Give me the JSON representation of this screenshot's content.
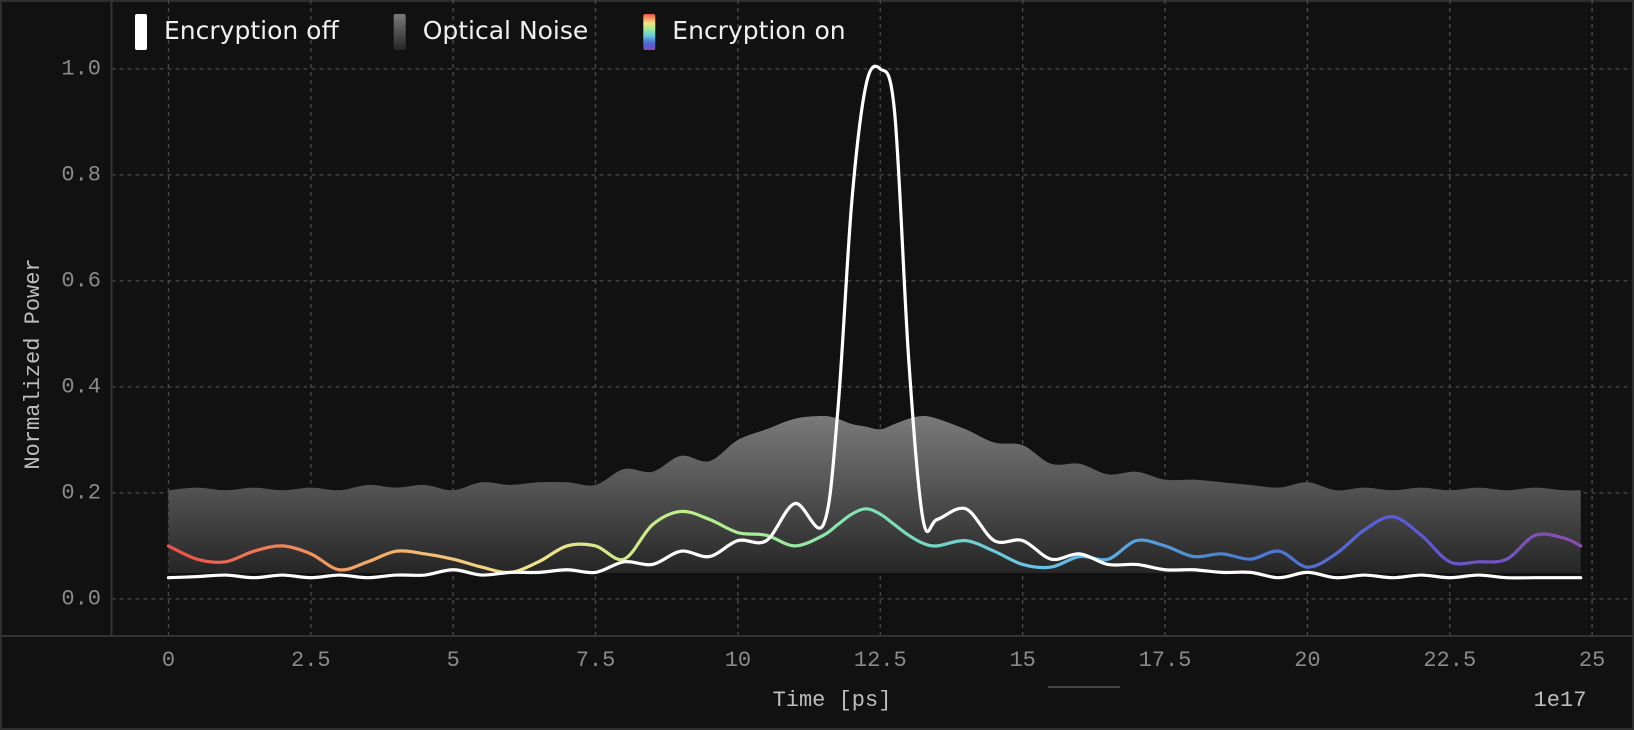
{
  "chart_data": {
    "type": "line",
    "x_label": "Time [ps]",
    "y_label": "Normalized Power",
    "x_offset_label": "1e17",
    "x": [
      0,
      0.5,
      1,
      1.5,
      2,
      2.5,
      3,
      3.5,
      4,
      4.5,
      5,
      5.5,
      6,
      6.5,
      7,
      7.5,
      8,
      8.5,
      9,
      9.5,
      10,
      10.5,
      11,
      11.5,
      11.75,
      12,
      12.25,
      12.5,
      12.75,
      13,
      13.25,
      13.5,
      14,
      14.5,
      15,
      15.5,
      16,
      16.5,
      17,
      17.5,
      18,
      18.5,
      19,
      19.5,
      20,
      20.5,
      21,
      21.5,
      22,
      22.5,
      23,
      23.5,
      24,
      24.5,
      24.8
    ],
    "series": [
      {
        "name": "Encryption off",
        "color": "#ffffff",
        "values": [
          0.04,
          0.042,
          0.045,
          0.04,
          0.045,
          0.04,
          0.045,
          0.04,
          0.045,
          0.045,
          0.055,
          0.045,
          0.05,
          0.05,
          0.055,
          0.05,
          0.07,
          0.065,
          0.09,
          0.08,
          0.11,
          0.11,
          0.18,
          0.14,
          0.35,
          0.75,
          0.97,
          1.0,
          0.92,
          0.45,
          0.15,
          0.15,
          0.17,
          0.11,
          0.11,
          0.075,
          0.085,
          0.065,
          0.065,
          0.055,
          0.055,
          0.05,
          0.05,
          0.04,
          0.05,
          0.04,
          0.045,
          0.04,
          0.045,
          0.04,
          0.045,
          0.04,
          0.04,
          0.04,
          0.04
        ]
      },
      {
        "name": "Optical Noise",
        "type": "band",
        "color": [
          "#7a7a7a",
          "#262626"
        ],
        "base": 0.05,
        "values": [
          0.205,
          0.21,
          0.205,
          0.21,
          0.205,
          0.21,
          0.205,
          0.215,
          0.21,
          0.215,
          0.205,
          0.22,
          0.215,
          0.22,
          0.22,
          0.215,
          0.245,
          0.24,
          0.27,
          0.26,
          0.3,
          0.32,
          0.34,
          0.345,
          0.34,
          0.33,
          0.325,
          0.32,
          0.33,
          0.34,
          0.345,
          0.34,
          0.32,
          0.295,
          0.29,
          0.255,
          0.255,
          0.235,
          0.24,
          0.225,
          0.225,
          0.22,
          0.215,
          0.21,
          0.22,
          0.205,
          0.21,
          0.205,
          0.21,
          0.205,
          0.21,
          0.205,
          0.21,
          0.205,
          0.205
        ]
      },
      {
        "name": "Encryption on",
        "color": [
          "#e8504a",
          "#f4a060",
          "#f3e08a",
          "#b8f08a",
          "#7ee0b4",
          "#66c0e8",
          "#4a82d0",
          "#5a5ad8",
          "#8a4cb0"
        ],
        "values": [
          0.1,
          0.075,
          0.07,
          0.09,
          0.1,
          0.085,
          0.055,
          0.07,
          0.09,
          0.085,
          0.075,
          0.06,
          0.05,
          0.07,
          0.1,
          0.1,
          0.075,
          0.14,
          0.165,
          0.15,
          0.125,
          0.12,
          0.1,
          0.12,
          0.14,
          0.16,
          0.17,
          0.16,
          0.14,
          0.12,
          0.105,
          0.1,
          0.11,
          0.09,
          0.065,
          0.06,
          0.08,
          0.075,
          0.11,
          0.1,
          0.08,
          0.085,
          0.075,
          0.09,
          0.06,
          0.085,
          0.13,
          0.155,
          0.12,
          0.07,
          0.07,
          0.075,
          0.12,
          0.115,
          0.1
        ]
      }
    ],
    "xlim": [
      -1,
      25.7
    ],
    "ylim": [
      -0.07,
      1.13
    ],
    "xticks": [
      0,
      2.5,
      5,
      7.5,
      10,
      12.5,
      15,
      17.5,
      20,
      22.5,
      25
    ],
    "yticks": [
      {
        "value": 0,
        "label": "0.0"
      },
      0.2,
      0.4,
      0.6,
      0.8,
      {
        "value": 1,
        "label": "1.0"
      }
    ],
    "grid": true,
    "legend": "upper left"
  }
}
